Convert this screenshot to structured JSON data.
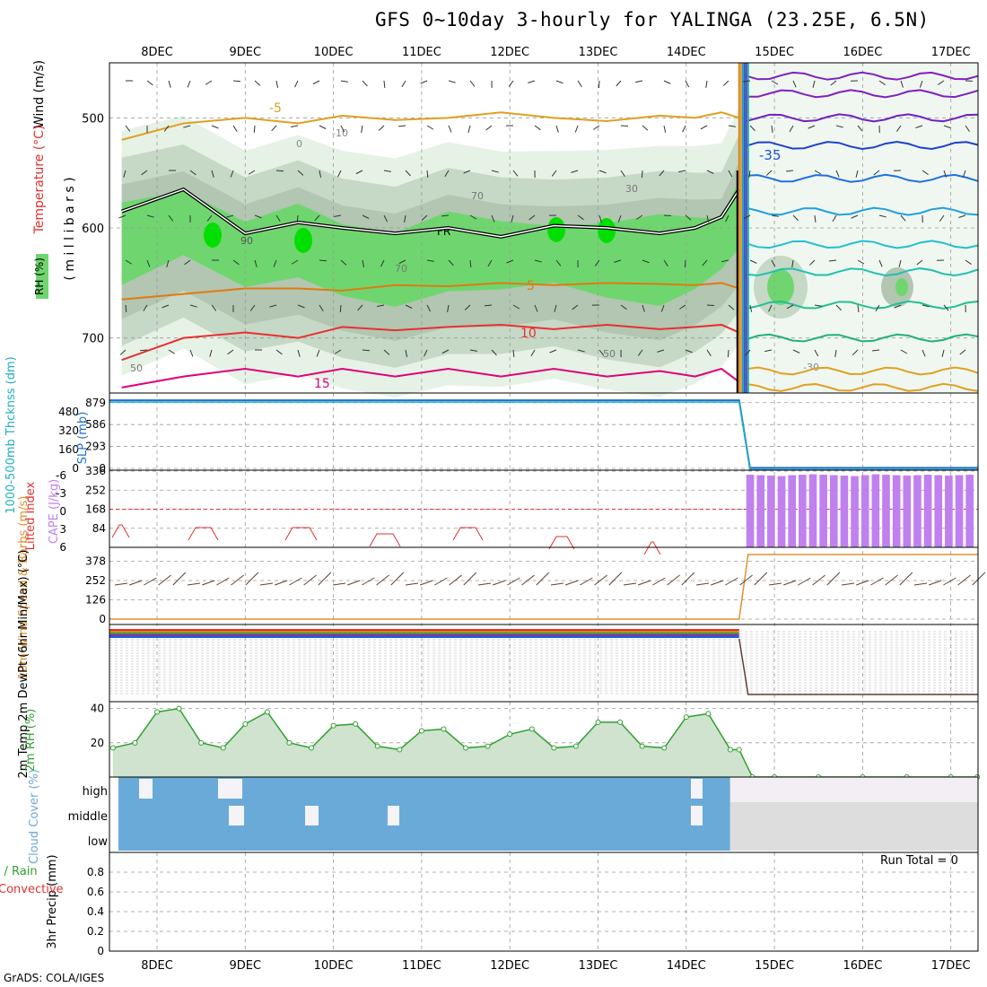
{
  "title": "GFS 0~10day 3-hourly for YALINGA (23.25E, 6.5N)",
  "credit": "GrADS: COLA/IGES",
  "run_total": "Run Total = 0",
  "colors": {
    "rh_light": "#e6f2e6",
    "rh_mid": "#c6d8c6",
    "rh_dark": "#b2c6b2",
    "rh_green": "#6fd66f",
    "rh_bright": "#00e000",
    "t_orange": "#e07a10",
    "t_red": "#e83030",
    "t_magenta": "#e0007a",
    "t_gold": "#e0a020",
    "slp": "#2070d0",
    "thickness": "#20b0c0",
    "cape": "#c080f0",
    "lifted_index": "#e03030",
    "wind": "#e09030",
    "barb": "#604030",
    "rh2m": "#30a030",
    "cloud": "#6aaad8",
    "cloud_white": "#f2eef4"
  },
  "chart_data": [
    {
      "panel": "upper-air",
      "type": "heatmap",
      "x_ticks": [
        "8DEC",
        "9DEC",
        "10DEC",
        "11DEC",
        "12DEC",
        "13DEC",
        "14DEC",
        "15DEC",
        "16DEC",
        "17DEC"
      ],
      "ylabel": "( m i l l i b a r s )",
      "y_ticks": [
        500,
        600,
        700
      ],
      "ylim": [
        750,
        450
      ],
      "legend_labels": [
        "Wind (m/s)",
        "Temperature (°C)",
        "RH (%)"
      ],
      "contour_labels": [
        "-5",
        "-10",
        "0",
        "5",
        "10",
        "15",
        "-35",
        "-30",
        "FR",
        "30",
        "50",
        "70",
        "90"
      ],
      "temperature_lines": [
        {
          "label": "-5",
          "color": "#e0a020",
          "pressure": [
            520,
            505,
            500,
            505,
            498,
            502,
            500,
            495,
            500,
            503,
            498,
            500,
            495,
            500
          ]
        },
        {
          "label": "5",
          "color": "#e07a10",
          "pressure": [
            665,
            660,
            655,
            655,
            657,
            652,
            653,
            650,
            652,
            650,
            651,
            652,
            650,
            655
          ]
        },
        {
          "label": "10",
          "color": "#e83030",
          "pressure": [
            720,
            700,
            695,
            700,
            690,
            693,
            690,
            688,
            692,
            688,
            692,
            690,
            688,
            695
          ]
        },
        {
          "label": "15",
          "color": "#e0007a",
          "pressure": [
            745,
            735,
            728,
            735,
            728,
            735,
            728,
            735,
            728,
            735,
            730,
            735,
            728,
            740
          ]
        }
      ],
      "freezing_level_pressure": [
        585,
        565,
        605,
        595,
        600,
        605,
        600,
        608,
        598,
        600,
        605,
        600,
        590,
        565
      ],
      "x_time": [
        7.6,
        8.3,
        9.0,
        9.6,
        10.1,
        10.7,
        11.3,
        11.9,
        12.5,
        13.1,
        13.7,
        14.1,
        14.4,
        14.6
      ],
      "after_break": {
        "labels": [
          "-35",
          "-30"
        ],
        "isotherm_pressures": [
          462,
          478,
          500,
          525,
          555,
          585,
          615,
          640,
          670,
          700,
          730,
          745
        ]
      }
    },
    {
      "panel": "slp-thickness",
      "type": "line",
      "ylabel_left": "1000-500mb Thcknss (dm)",
      "ylabel_right": "SLP (mb)",
      "y_ticks_left": [
        0,
        160,
        320,
        480
      ],
      "y_ticks_right": [
        "0",
        "293",
        "586",
        "879"
      ],
      "slp_before": 910,
      "slp_after": 8,
      "break_day": 14.6
    },
    {
      "panel": "cape-li",
      "type": "bar",
      "ylabel_left": "Lifted Index",
      "ylabel_right": "CAPE (J/kg)",
      "y_ticks_left": [
        "-6",
        "-3",
        "0",
        "3",
        "6"
      ],
      "y_ticks_right": [
        "336",
        "252",
        "168",
        "84"
      ],
      "cape_after_break": [
        320,
        318,
        316,
        314,
        318,
        320,
        322,
        320,
        318,
        316,
        314,
        318,
        322,
        320,
        318,
        316,
        318,
        320,
        318,
        316,
        318,
        320
      ],
      "li_pattern": "diurnal"
    },
    {
      "panel": "10m-wind",
      "type": "line",
      "ylabel": "10m Wind Speed & Barbs (m/s)",
      "y_ticks": [
        "0",
        "126",
        "252",
        "378"
      ],
      "wind_before": 0,
      "wind_after": 400
    },
    {
      "panel": "2m-temp",
      "type": "line",
      "ylabel": "2m Temp 2m DewPt (6hr Min/Max) (°C)"
    },
    {
      "panel": "2m-rh",
      "type": "area",
      "ylabel": "2m RH (%)",
      "y_ticks": [
        "20",
        "40"
      ],
      "ylim": [
        0,
        44
      ],
      "x": [
        7.5,
        7.75,
        8.0,
        8.25,
        8.5,
        8.75,
        9.0,
        9.25,
        9.5,
        9.75,
        10.0,
        10.25,
        10.5,
        10.75,
        11.0,
        11.25,
        11.5,
        11.75,
        12.0,
        12.25,
        12.5,
        12.75,
        13.0,
        13.25,
        13.5,
        13.75,
        14.0,
        14.25,
        14.5,
        14.6,
        14.75,
        15.0,
        15.5,
        16.0,
        16.5,
        17.0,
        17.3
      ],
      "values": [
        17,
        20,
        38,
        40,
        20,
        17,
        31,
        38,
        20,
        17,
        30,
        31,
        18,
        16,
        27,
        28,
        17,
        18,
        25,
        28,
        17,
        18,
        32,
        32,
        18,
        17,
        35,
        37,
        16,
        16,
        0,
        0,
        0,
        0,
        0,
        0,
        0
      ]
    },
    {
      "panel": "cloud-cover",
      "type": "heatmap",
      "ylabel": "Cloud Cover (%)",
      "levels": [
        "high",
        "middle",
        "low"
      ]
    },
    {
      "panel": "precip",
      "type": "bar",
      "ylabel_a": "3hr Precip (mm)",
      "ylabel_b": "Total / Rain",
      "ylabel_c": "Convective",
      "y_ticks": [
        "0",
        "0.2",
        "0.4",
        "0.6",
        "0.8"
      ],
      "values": []
    }
  ]
}
